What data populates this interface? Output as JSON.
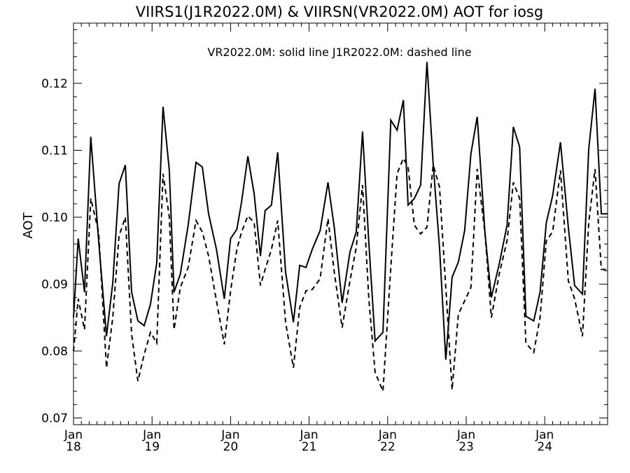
{
  "chart_data": {
    "type": "line",
    "title": "VIIRS1(J1R2022.0M) & VIIRSN(VR2022.0M)  AOT for iosg",
    "annotation": "VR2022.0M: solid line   J1R2022.0M: dashed line",
    "ylabel": "AOT",
    "xlabel": "",
    "xlim": [
      18,
      24.8
    ],
    "ylim": [
      0.069,
      0.129
    ],
    "grid": false,
    "y_ticks": [
      0.07,
      0.08,
      0.09,
      0.1,
      0.11,
      0.12
    ],
    "y_tick_labels": [
      "0.07",
      "0.08",
      "0.09",
      "0.10",
      "0.11",
      "0.12"
    ],
    "x_ticks": [
      {
        "value": 18,
        "month": "Jan",
        "day": "18"
      },
      {
        "value": 19,
        "month": "Jan",
        "day": "19"
      },
      {
        "value": 20,
        "month": "Jan",
        "day": "20"
      },
      {
        "value": 21,
        "month": "Jan",
        "day": "21"
      },
      {
        "value": 22,
        "month": "Jan",
        "day": "22"
      },
      {
        "value": 23,
        "month": "Jan",
        "day": "23"
      },
      {
        "value": 24,
        "month": "Jan",
        "day": "24"
      }
    ],
    "x": [
      18.0,
      18.06,
      18.14,
      18.22,
      18.32,
      18.42,
      18.5,
      18.58,
      18.66,
      18.74,
      18.82,
      18.9,
      18.98,
      19.06,
      19.14,
      19.22,
      19.28,
      19.36,
      19.46,
      19.56,
      19.64,
      19.72,
      19.82,
      19.92,
      20.0,
      20.08,
      20.14,
      20.22,
      20.3,
      20.38,
      20.44,
      20.52,
      20.6,
      20.7,
      20.8,
      20.88,
      20.96,
      21.04,
      21.14,
      21.24,
      21.32,
      21.42,
      21.52,
      21.6,
      21.68,
      21.76,
      21.84,
      21.94,
      22.04,
      22.12,
      22.2,
      22.26,
      22.34,
      22.42,
      22.5,
      22.58,
      22.66,
      22.74,
      22.82,
      22.9,
      22.98,
      23.06,
      23.14,
      23.24,
      23.32,
      23.42,
      23.52,
      23.6,
      23.68,
      23.76,
      23.86,
      23.94,
      24.02,
      24.1,
      24.2,
      24.3,
      24.38,
      24.48,
      24.56,
      24.64,
      24.72,
      24.8
    ],
    "series": [
      {
        "name": "VR2022.0M",
        "style": "solid",
        "color": "#000000",
        "values": [
          0.085,
          0.0968,
          0.0888,
          0.112,
          0.0965,
          0.0822,
          0.0902,
          0.105,
          0.1078,
          0.0888,
          0.0845,
          0.0838,
          0.087,
          0.0932,
          0.1165,
          0.107,
          0.0888,
          0.0915,
          0.0988,
          0.1082,
          0.1075,
          0.1005,
          0.0952,
          0.0878,
          0.0968,
          0.0982,
          0.1023,
          0.1091,
          0.1035,
          0.0942,
          0.101,
          0.1018,
          0.1097,
          0.0918,
          0.0843,
          0.0928,
          0.0925,
          0.0952,
          0.098,
          0.1052,
          0.0985,
          0.0872,
          0.0948,
          0.0978,
          0.1128,
          0.0962,
          0.0815,
          0.0828,
          0.1145,
          0.113,
          0.1175,
          0.1018,
          0.1028,
          0.1048,
          0.1232,
          0.1078,
          0.0955,
          0.0787,
          0.091,
          0.0933,
          0.098,
          0.1095,
          0.115,
          0.0975,
          0.088,
          0.093,
          0.0988,
          0.1135,
          0.1105,
          0.0852,
          0.0845,
          0.0888,
          0.0992,
          0.1032,
          0.1112,
          0.0985,
          0.0898,
          0.0885,
          0.1102,
          0.1192,
          0.1005,
          0.1005
        ]
      },
      {
        "name": "J1R2022.0M",
        "style": "dashed",
        "color": "#000000",
        "values": [
          0.08,
          0.0878,
          0.0832,
          0.1028,
          0.0978,
          0.0775,
          0.085,
          0.0972,
          0.1,
          0.0825,
          0.0755,
          0.0795,
          0.0828,
          0.0812,
          0.1065,
          0.1,
          0.0832,
          0.0895,
          0.0925,
          0.0995,
          0.0978,
          0.0942,
          0.0875,
          0.081,
          0.089,
          0.0952,
          0.0978,
          0.1002,
          0.0992,
          0.0898,
          0.0922,
          0.0952,
          0.0995,
          0.0843,
          0.0775,
          0.0865,
          0.089,
          0.0892,
          0.0908,
          0.0998,
          0.0918,
          0.0835,
          0.0905,
          0.0955,
          0.1048,
          0.0878,
          0.0768,
          0.074,
          0.0925,
          0.1065,
          0.1088,
          0.1075,
          0.0988,
          0.0975,
          0.0985,
          0.1078,
          0.1045,
          0.0895,
          0.0742,
          0.0855,
          0.0875,
          0.0895,
          0.1072,
          0.0975,
          0.085,
          0.0915,
          0.0965,
          0.1052,
          0.1028,
          0.0812,
          0.0798,
          0.085,
          0.0965,
          0.0978,
          0.107,
          0.0905,
          0.0878,
          0.0822,
          0.0992,
          0.1072,
          0.0922,
          0.0922
        ]
      }
    ]
  }
}
